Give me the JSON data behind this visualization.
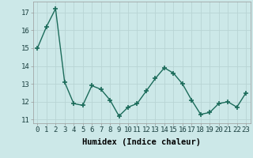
{
  "x": [
    0,
    1,
    2,
    3,
    4,
    5,
    6,
    7,
    8,
    9,
    10,
    11,
    12,
    13,
    14,
    15,
    16,
    17,
    18,
    19,
    20,
    21,
    22,
    23
  ],
  "y": [
    15.0,
    16.2,
    17.2,
    13.1,
    11.9,
    11.8,
    12.9,
    12.7,
    12.1,
    11.2,
    11.7,
    11.9,
    12.6,
    13.3,
    13.9,
    13.6,
    13.0,
    12.1,
    11.3,
    11.4,
    11.9,
    12.0,
    11.7,
    12.5
  ],
  "line_color": "#1b6b5a",
  "marker": "+",
  "marker_size": 4,
  "bg_color": "#cce8e8",
  "grid_color": "#b8d4d4",
  "xlabel": "Humidex (Indice chaleur)",
  "xlim": [
    -0.5,
    23.5
  ],
  "ylim": [
    10.8,
    17.6
  ],
  "yticks": [
    11,
    12,
    13,
    14,
    15,
    16,
    17
  ],
  "xticks": [
    0,
    1,
    2,
    3,
    4,
    5,
    6,
    7,
    8,
    9,
    10,
    11,
    12,
    13,
    14,
    15,
    16,
    17,
    18,
    19,
    20,
    21,
    22,
    23
  ],
  "xtick_labels": [
    "0",
    "1",
    "2",
    "3",
    "4",
    "5",
    "6",
    "7",
    "8",
    "9",
    "10",
    "11",
    "12",
    "13",
    "14",
    "15",
    "16",
    "17",
    "18",
    "19",
    "20",
    "21",
    "22",
    "23"
  ],
  "linewidth": 1.0,
  "xlabel_fontsize": 7.5,
  "tick_fontsize": 6.5,
  "marker_color": "#1b6b5a"
}
